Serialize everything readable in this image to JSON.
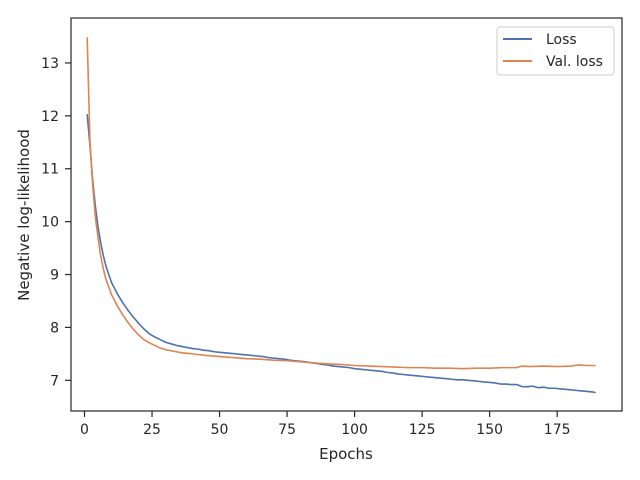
{
  "chart_data": {
    "type": "line",
    "title": "",
    "xlabel": "Epochs",
    "ylabel": "Negative log-likelihood",
    "xlim": [
      -5,
      199
    ],
    "ylim": [
      6.42,
      13.85
    ],
    "xticks": [
      0,
      25,
      50,
      75,
      100,
      125,
      150,
      175
    ],
    "yticks": [
      7,
      8,
      9,
      10,
      11,
      12,
      13
    ],
    "grid": false,
    "legend_position": "top-right",
    "series": [
      {
        "name": "Loss",
        "color": "#4c72b0",
        "x": [
          1,
          2,
          3,
          4,
          5,
          6,
          7,
          8,
          10,
          12,
          14,
          16,
          18,
          20,
          22,
          24,
          26,
          28,
          30,
          32,
          34,
          36,
          38,
          40,
          42,
          44,
          46,
          48,
          50,
          52,
          54,
          56,
          58,
          60,
          62,
          64,
          66,
          68,
          70,
          72,
          74,
          76,
          78,
          80,
          82,
          84,
          86,
          88,
          90,
          92,
          94,
          96,
          98,
          100,
          102,
          104,
          106,
          108,
          110,
          112,
          114,
          116,
          118,
          120,
          122,
          124,
          126,
          128,
          130,
          132,
          134,
          136,
          138,
          140,
          142,
          144,
          146,
          148,
          150,
          152,
          154,
          156,
          158,
          160,
          162,
          164,
          166,
          168,
          170,
          172,
          174,
          176,
          178,
          180,
          182,
          184,
          186,
          188,
          189
        ],
        "values": [
          12.02,
          11.45,
          10.8,
          10.3,
          9.9,
          9.6,
          9.35,
          9.15,
          8.85,
          8.65,
          8.48,
          8.33,
          8.2,
          8.08,
          7.97,
          7.88,
          7.82,
          7.77,
          7.72,
          7.69,
          7.66,
          7.64,
          7.62,
          7.6,
          7.59,
          7.57,
          7.56,
          7.54,
          7.53,
          7.52,
          7.51,
          7.5,
          7.49,
          7.48,
          7.47,
          7.46,
          7.45,
          7.43,
          7.42,
          7.41,
          7.4,
          7.38,
          7.37,
          7.36,
          7.35,
          7.33,
          7.32,
          7.3,
          7.29,
          7.27,
          7.26,
          7.25,
          7.24,
          7.22,
          7.21,
          7.2,
          7.19,
          7.18,
          7.17,
          7.15,
          7.14,
          7.12,
          7.11,
          7.1,
          7.09,
          7.08,
          7.07,
          7.06,
          7.05,
          7.04,
          7.03,
          7.02,
          7.01,
          7.01,
          7.0,
          6.99,
          6.98,
          6.97,
          6.96,
          6.95,
          6.93,
          6.93,
          6.92,
          6.92,
          6.88,
          6.88,
          6.89,
          6.86,
          6.87,
          6.85,
          6.85,
          6.84,
          6.83,
          6.82,
          6.81,
          6.8,
          6.79,
          6.78,
          6.77
        ]
      },
      {
        "name": "Val. loss",
        "color": "#dd8452",
        "x": [
          1,
          2,
          3,
          4,
          5,
          6,
          7,
          8,
          10,
          12,
          14,
          16,
          18,
          20,
          22,
          24,
          26,
          28,
          30,
          32,
          34,
          36,
          38,
          40,
          45,
          50,
          55,
          60,
          65,
          70,
          75,
          80,
          85,
          90,
          95,
          100,
          105,
          110,
          115,
          120,
          125,
          130,
          135,
          140,
          145,
          150,
          155,
          160,
          162,
          165,
          170,
          175,
          180,
          183,
          186,
          189
        ],
        "values": [
          13.47,
          11.55,
          10.7,
          10.1,
          9.7,
          9.35,
          9.1,
          8.9,
          8.62,
          8.42,
          8.25,
          8.1,
          7.97,
          7.86,
          7.77,
          7.71,
          7.66,
          7.61,
          7.58,
          7.56,
          7.54,
          7.52,
          7.51,
          7.5,
          7.47,
          7.45,
          7.43,
          7.41,
          7.4,
          7.38,
          7.37,
          7.35,
          7.33,
          7.31,
          7.3,
          7.28,
          7.27,
          7.26,
          7.25,
          7.24,
          7.24,
          7.23,
          7.23,
          7.22,
          7.23,
          7.23,
          7.24,
          7.24,
          7.27,
          7.26,
          7.27,
          7.26,
          7.27,
          7.29,
          7.28,
          7.28
        ]
      }
    ]
  }
}
